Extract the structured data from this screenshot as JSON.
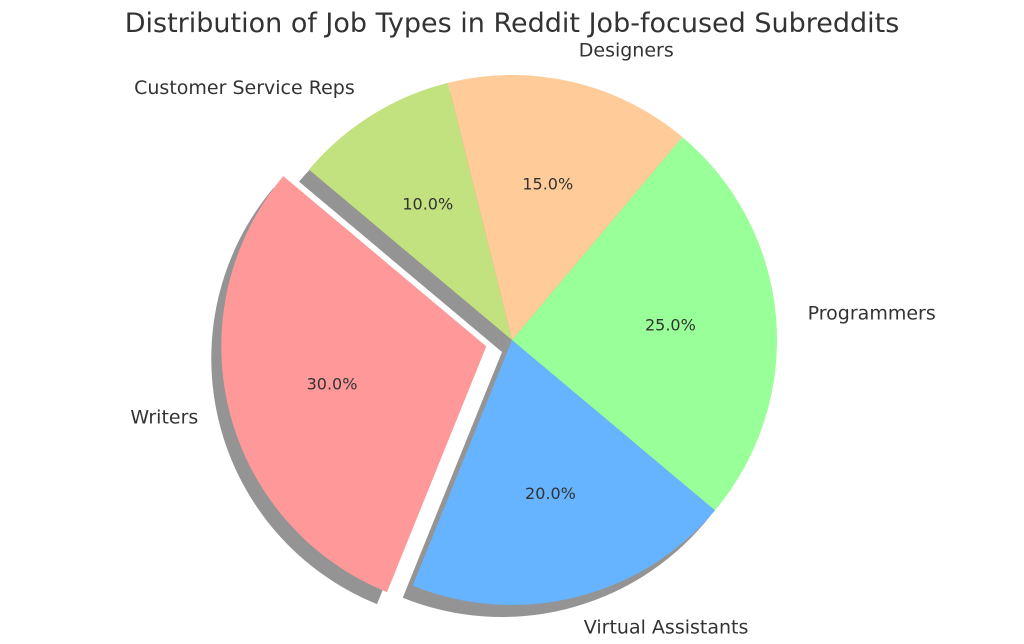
{
  "chart_data": {
    "type": "pie",
    "title": "Distribution of Job Types in Reddit Job-focused Subreddits",
    "categories": [
      "Writers",
      "Virtual Assistants",
      "Programmers",
      "Designers",
      "Customer Service Reps"
    ],
    "values": [
      30,
      20,
      25,
      15,
      10
    ],
    "value_labels": [
      "30.0%",
      "20.0%",
      "25.0%",
      "15.0%",
      "10.0%"
    ],
    "colors": [
      "#ff9999",
      "#66b3ff",
      "#99ff99",
      "#ffcc99",
      "#c2e17f"
    ],
    "explode": [
      0.1,
      0,
      0,
      0,
      0
    ],
    "start_angle": 140,
    "shadow": true,
    "legend": "none"
  }
}
